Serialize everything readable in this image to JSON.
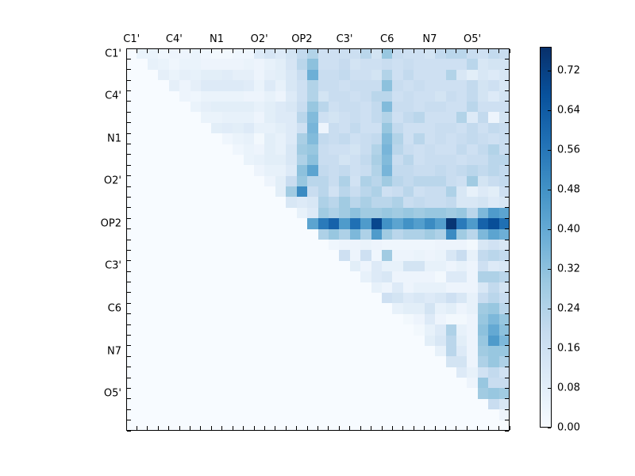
{
  "figure": {
    "background": "#ffffff",
    "frame_color": "#000000",
    "tick_color": "#000000",
    "label_color": "#000000"
  },
  "chart_data": {
    "type": "heatmap",
    "title": "",
    "xlabel": "",
    "ylabel": "",
    "n": 36,
    "x_tick_labels": [
      "C1'",
      "C4'",
      "N1",
      "O2'",
      "OP2",
      "C3'",
      "C6",
      "N7",
      "O5'"
    ],
    "y_tick_labels": [
      "C1'",
      "C4'",
      "N1",
      "O2'",
      "OP2",
      "C3'",
      "C6",
      "N7",
      "O5'"
    ],
    "tick_label_cell_positions": [
      0,
      4,
      8,
      12,
      16,
      20,
      24,
      28,
      32
    ],
    "grid": false,
    "vmin": 0.0,
    "vmax": 0.768,
    "colormap": {
      "name": "Blues",
      "stops": [
        {
          "t": 0.0,
          "color": "#f7fbff"
        },
        {
          "t": 0.125,
          "color": "#deebf7"
        },
        {
          "t": 0.25,
          "color": "#c6dbef"
        },
        {
          "t": 0.375,
          "color": "#9ecae1"
        },
        {
          "t": 0.5,
          "color": "#6baed6"
        },
        {
          "t": 0.625,
          "color": "#4292c6"
        },
        {
          "t": 0.75,
          "color": "#2171b5"
        },
        {
          "t": 0.875,
          "color": "#08519c"
        },
        {
          "t": 1.0,
          "color": "#08306b"
        }
      ]
    },
    "colorbar": {
      "tick_labels": [
        "0.00",
        "0.08",
        "0.16",
        "0.24",
        "0.32",
        "0.40",
        "0.48",
        "0.56",
        "0.64",
        "0.72"
      ],
      "tick_values": [
        0.0,
        0.08,
        0.16,
        0.24,
        0.32,
        0.4,
        0.48,
        0.56,
        0.64,
        0.72
      ],
      "position": "right"
    },
    "matrix": [
      [
        0,
        0.05,
        0.05,
        0.03,
        0.04,
        0.04,
        0.05,
        0.03,
        0.02,
        0.02,
        0.03,
        0.03,
        0.1,
        0.13,
        0.1,
        0.14,
        0.2,
        0.24,
        0.16,
        0.16,
        0.17,
        0.17,
        0.22,
        0.14,
        0.3,
        0.18,
        0.16,
        0.16,
        0.14,
        0.2,
        0.22,
        0.22,
        0.18,
        0.16,
        0.2,
        0.18
      ],
      [
        0,
        0,
        0.06,
        0.05,
        0.03,
        0.05,
        0.05,
        0.04,
        0.04,
        0.04,
        0.04,
        0.05,
        0.04,
        0.06,
        0.08,
        0.13,
        0.22,
        0.32,
        0.16,
        0.16,
        0.19,
        0.14,
        0.16,
        0.16,
        0.18,
        0.16,
        0.18,
        0.16,
        0.16,
        0.16,
        0.16,
        0.16,
        0.22,
        0.12,
        0.14,
        0.14
      ],
      [
        0,
        0,
        0,
        0.07,
        0.05,
        0.07,
        0.06,
        0.08,
        0.08,
        0.09,
        0.07,
        0.07,
        0.04,
        0.07,
        0.08,
        0.12,
        0.18,
        0.38,
        0.18,
        0.18,
        0.2,
        0.16,
        0.16,
        0.14,
        0.24,
        0.16,
        0.2,
        0.16,
        0.16,
        0.16,
        0.24,
        0.12,
        0.08,
        0.12,
        0.1,
        0.12
      ],
      [
        0,
        0,
        0,
        0,
        0.07,
        0.04,
        0.07,
        0.1,
        0.1,
        0.1,
        0.1,
        0.09,
        0.05,
        0.1,
        0.06,
        0.12,
        0.16,
        0.24,
        0.18,
        0.18,
        0.16,
        0.18,
        0.18,
        0.18,
        0.32,
        0.18,
        0.16,
        0.18,
        0.16,
        0.16,
        0.16,
        0.16,
        0.2,
        0.14,
        0.16,
        0.12
      ],
      [
        0,
        0,
        0,
        0,
        0,
        0.04,
        0.03,
        0.05,
        0.05,
        0.05,
        0.05,
        0.04,
        0.04,
        0.06,
        0.04,
        0.1,
        0.16,
        0.24,
        0.14,
        0.18,
        0.18,
        0.16,
        0.18,
        0.22,
        0.22,
        0.16,
        0.18,
        0.16,
        0.16,
        0.14,
        0.18,
        0.16,
        0.2,
        0.14,
        0.1,
        0.14
      ],
      [
        0,
        0,
        0,
        0,
        0,
        0,
        0.05,
        0.07,
        0.08,
        0.08,
        0.08,
        0.08,
        0.06,
        0.08,
        0.1,
        0.12,
        0.18,
        0.3,
        0.22,
        0.16,
        0.18,
        0.18,
        0.16,
        0.2,
        0.34,
        0.18,
        0.18,
        0.16,
        0.18,
        0.18,
        0.16,
        0.16,
        0.22,
        0.16,
        0.16,
        0.16
      ],
      [
        0,
        0,
        0,
        0,
        0,
        0,
        0,
        0.05,
        0.05,
        0.06,
        0.06,
        0.06,
        0.04,
        0.08,
        0.1,
        0.1,
        0.22,
        0.34,
        0.16,
        0.14,
        0.16,
        0.18,
        0.16,
        0.2,
        0.24,
        0.16,
        0.2,
        0.22,
        0.16,
        0.16,
        0.16,
        0.24,
        0.1,
        0.2,
        0.04,
        0.14
      ],
      [
        0,
        0,
        0,
        0,
        0,
        0,
        0,
        0,
        0.08,
        0.09,
        0.08,
        0.1,
        0.06,
        0.06,
        0.08,
        0.1,
        0.16,
        0.36,
        0.04,
        0.18,
        0.16,
        0.2,
        0.16,
        0.16,
        0.3,
        0.2,
        0.16,
        0.16,
        0.16,
        0.18,
        0.18,
        0.16,
        0.2,
        0.16,
        0.2,
        0.18
      ],
      [
        0,
        0,
        0,
        0,
        0,
        0,
        0,
        0,
        0,
        0.03,
        0.05,
        0.06,
        0.02,
        0.08,
        0.06,
        0.1,
        0.26,
        0.34,
        0.2,
        0.18,
        0.2,
        0.16,
        0.18,
        0.2,
        0.34,
        0.24,
        0.16,
        0.22,
        0.16,
        0.18,
        0.16,
        0.18,
        0.2,
        0.18,
        0.16,
        0.18
      ],
      [
        0,
        0,
        0,
        0,
        0,
        0,
        0,
        0,
        0,
        0,
        0.03,
        0.05,
        0.04,
        0.08,
        0.06,
        0.12,
        0.28,
        0.3,
        0.18,
        0.16,
        0.16,
        0.14,
        0.18,
        0.24,
        0.36,
        0.22,
        0.18,
        0.16,
        0.18,
        0.16,
        0.16,
        0.2,
        0.16,
        0.2,
        0.24,
        0.18
      ],
      [
        0,
        0,
        0,
        0,
        0,
        0,
        0,
        0,
        0,
        0,
        0,
        0.05,
        0.06,
        0.08,
        0.08,
        0.12,
        0.25,
        0.32,
        0.18,
        0.18,
        0.14,
        0.16,
        0.2,
        0.26,
        0.34,
        0.18,
        0.22,
        0.16,
        0.18,
        0.18,
        0.18,
        0.16,
        0.18,
        0.18,
        0.22,
        0.22
      ],
      [
        0,
        0,
        0,
        0,
        0,
        0,
        0,
        0,
        0,
        0,
        0,
        0,
        0.04,
        0.06,
        0.06,
        0.1,
        0.32,
        0.42,
        0.2,
        0.18,
        0.2,
        0.16,
        0.18,
        0.24,
        0.36,
        0.2,
        0.2,
        0.18,
        0.18,
        0.2,
        0.18,
        0.2,
        0.22,
        0.2,
        0.22,
        0.2
      ],
      [
        0,
        0,
        0,
        0,
        0,
        0,
        0,
        0,
        0,
        0,
        0,
        0,
        0,
        0.04,
        0.08,
        0.18,
        0.3,
        0.22,
        0.22,
        0.18,
        0.25,
        0.15,
        0.25,
        0.22,
        0.28,
        0.22,
        0.2,
        0.22,
        0.22,
        0.22,
        0.18,
        0.16,
        0.28,
        0.14,
        0.18,
        0.2
      ],
      [
        0,
        0,
        0,
        0,
        0,
        0,
        0,
        0,
        0,
        0,
        0,
        0,
        0,
        0,
        0.08,
        0.28,
        0.5,
        0.18,
        0.22,
        0.15,
        0.22,
        0.18,
        0.22,
        0.25,
        0.16,
        0.18,
        0.22,
        0.16,
        0.18,
        0.18,
        0.25,
        0.12,
        0.06,
        0.1,
        0.08,
        0.16
      ],
      [
        0,
        0,
        0,
        0,
        0,
        0,
        0,
        0,
        0,
        0,
        0,
        0,
        0,
        0,
        0,
        0.12,
        0.1,
        0.12,
        0.25,
        0.22,
        0.28,
        0.22,
        0.26,
        0.22,
        0.22,
        0.25,
        0.18,
        0.2,
        0.18,
        0.18,
        0.2,
        0.12,
        0.12,
        0.14,
        0.1,
        0.12
      ],
      [
        0,
        0,
        0,
        0,
        0,
        0,
        0,
        0,
        0,
        0,
        0,
        0,
        0,
        0,
        0,
        0,
        0.06,
        0.1,
        0.28,
        0.25,
        0.28,
        0.32,
        0.28,
        0.28,
        0.3,
        0.28,
        0.3,
        0.28,
        0.3,
        0.3,
        0.28,
        0.3,
        0.22,
        0.35,
        0.45,
        0.42
      ],
      [
        0,
        0,
        0,
        0,
        0,
        0,
        0,
        0,
        0,
        0,
        0,
        0,
        0,
        0,
        0,
        0,
        0,
        0.42,
        0.55,
        0.62,
        0.45,
        0.58,
        0.45,
        0.7,
        0.48,
        0.42,
        0.48,
        0.44,
        0.5,
        0.44,
        0.75,
        0.55,
        0.45,
        0.62,
        0.68,
        0.58
      ],
      [
        0,
        0,
        0,
        0,
        0,
        0,
        0,
        0,
        0,
        0,
        0,
        0,
        0,
        0,
        0,
        0,
        0,
        0,
        0.25,
        0.3,
        0.25,
        0.35,
        0.25,
        0.45,
        0.28,
        0.22,
        0.25,
        0.25,
        0.28,
        0.25,
        0.5,
        0.28,
        0.22,
        0.35,
        0.42,
        0.38
      ],
      [
        0,
        0,
        0,
        0,
        0,
        0,
        0,
        0,
        0,
        0,
        0,
        0,
        0,
        0,
        0,
        0,
        0,
        0,
        0,
        0.03,
        0.04,
        0.04,
        0.05,
        0.04,
        0.03,
        0.03,
        0.03,
        0.03,
        0.03,
        0.04,
        0.04,
        0.04,
        0.02,
        0.12,
        0.15,
        0.12
      ],
      [
        0,
        0,
        0,
        0,
        0,
        0,
        0,
        0,
        0,
        0,
        0,
        0,
        0,
        0,
        0,
        0,
        0,
        0,
        0,
        0,
        0.16,
        0.04,
        0.16,
        0.03,
        0.28,
        0.04,
        0.04,
        0.05,
        0.04,
        0.05,
        0.12,
        0.18,
        0.06,
        0.2,
        0.22,
        0.2
      ],
      [
        0,
        0,
        0,
        0,
        0,
        0,
        0,
        0,
        0,
        0,
        0,
        0,
        0,
        0,
        0,
        0,
        0,
        0,
        0,
        0,
        0,
        0.08,
        0.04,
        0.1,
        0.06,
        0.06,
        0.14,
        0.14,
        0.06,
        0.06,
        0.04,
        0.06,
        0.04,
        0.16,
        0.1,
        0.12
      ],
      [
        0,
        0,
        0,
        0,
        0,
        0,
        0,
        0,
        0,
        0,
        0,
        0,
        0,
        0,
        0,
        0,
        0,
        0,
        0,
        0,
        0,
        0,
        0.06,
        0.1,
        0.12,
        0.04,
        0.04,
        0.04,
        0.04,
        0.02,
        0.1,
        0.1,
        0.04,
        0.25,
        0.25,
        0.22
      ],
      [
        0,
        0,
        0,
        0,
        0,
        0,
        0,
        0,
        0,
        0,
        0,
        0,
        0,
        0,
        0,
        0,
        0,
        0,
        0,
        0,
        0,
        0,
        0,
        0.06,
        0.04,
        0.1,
        0.04,
        0.06,
        0.06,
        0.06,
        0.04,
        0.04,
        0.04,
        0.12,
        0.2,
        0.14
      ],
      [
        0,
        0,
        0,
        0,
        0,
        0,
        0,
        0,
        0,
        0,
        0,
        0,
        0,
        0,
        0,
        0,
        0,
        0,
        0,
        0,
        0,
        0,
        0,
        0,
        0.16,
        0.14,
        0.1,
        0.12,
        0.1,
        0.12,
        0.16,
        0.12,
        0.06,
        0.18,
        0.22,
        0.18
      ],
      [
        0,
        0,
        0,
        0,
        0,
        0,
        0,
        0,
        0,
        0,
        0,
        0,
        0,
        0,
        0,
        0,
        0,
        0,
        0,
        0,
        0,
        0,
        0,
        0,
        0,
        0.06,
        0.08,
        0.08,
        0.14,
        0.06,
        0.08,
        0.04,
        0.06,
        0.28,
        0.3,
        0.22
      ],
      [
        0,
        0,
        0,
        0,
        0,
        0,
        0,
        0,
        0,
        0,
        0,
        0,
        0,
        0,
        0,
        0,
        0,
        0,
        0,
        0,
        0,
        0,
        0,
        0,
        0,
        0,
        0.02,
        0.04,
        0.1,
        0.04,
        0.02,
        0.02,
        0.04,
        0.3,
        0.35,
        0.3
      ],
      [
        0,
        0,
        0,
        0,
        0,
        0,
        0,
        0,
        0,
        0,
        0,
        0,
        0,
        0,
        0,
        0,
        0,
        0,
        0,
        0,
        0,
        0,
        0,
        0,
        0,
        0,
        0,
        0.02,
        0.06,
        0.1,
        0.25,
        0.06,
        0.04,
        0.32,
        0.4,
        0.32
      ],
      [
        0,
        0,
        0,
        0,
        0,
        0,
        0,
        0,
        0,
        0,
        0,
        0,
        0,
        0,
        0,
        0,
        0,
        0,
        0,
        0,
        0,
        0,
        0,
        0,
        0,
        0,
        0,
        0,
        0.08,
        0.12,
        0.22,
        0.08,
        0.04,
        0.3,
        0.45,
        0.35
      ],
      [
        0,
        0,
        0,
        0,
        0,
        0,
        0,
        0,
        0,
        0,
        0,
        0,
        0,
        0,
        0,
        0,
        0,
        0,
        0,
        0,
        0,
        0,
        0,
        0,
        0,
        0,
        0,
        0,
        0,
        0.06,
        0.22,
        0.1,
        0.04,
        0.28,
        0.3,
        0.3
      ],
      [
        0,
        0,
        0,
        0,
        0,
        0,
        0,
        0,
        0,
        0,
        0,
        0,
        0,
        0,
        0,
        0,
        0,
        0,
        0,
        0,
        0,
        0,
        0,
        0,
        0,
        0,
        0,
        0,
        0,
        0,
        0.14,
        0.14,
        0.04,
        0.25,
        0.3,
        0.25
      ],
      [
        0,
        0,
        0,
        0,
        0,
        0,
        0,
        0,
        0,
        0,
        0,
        0,
        0,
        0,
        0,
        0,
        0,
        0,
        0,
        0,
        0,
        0,
        0,
        0,
        0,
        0,
        0,
        0,
        0,
        0,
        0,
        0.1,
        0.06,
        0.15,
        0.2,
        0.15
      ],
      [
        0,
        0,
        0,
        0,
        0,
        0,
        0,
        0,
        0,
        0,
        0,
        0,
        0,
        0,
        0,
        0,
        0,
        0,
        0,
        0,
        0,
        0,
        0,
        0,
        0,
        0,
        0,
        0,
        0,
        0,
        0,
        0,
        0.04,
        0.3,
        0.18,
        0.18
      ],
      [
        0,
        0,
        0,
        0,
        0,
        0,
        0,
        0,
        0,
        0,
        0,
        0,
        0,
        0,
        0,
        0,
        0,
        0,
        0,
        0,
        0,
        0,
        0,
        0,
        0,
        0,
        0,
        0,
        0,
        0,
        0,
        0,
        0,
        0.28,
        0.3,
        0.28
      ],
      [
        0,
        0,
        0,
        0,
        0,
        0,
        0,
        0,
        0,
        0,
        0,
        0,
        0,
        0,
        0,
        0,
        0,
        0,
        0,
        0,
        0,
        0,
        0,
        0,
        0,
        0,
        0,
        0,
        0,
        0,
        0,
        0,
        0,
        0,
        0.18,
        0.12
      ],
      [
        0,
        0,
        0,
        0,
        0,
        0,
        0,
        0,
        0,
        0,
        0,
        0,
        0,
        0,
        0,
        0,
        0,
        0,
        0,
        0,
        0,
        0,
        0,
        0,
        0,
        0,
        0,
        0,
        0,
        0,
        0,
        0,
        0,
        0,
        0,
        0.04
      ],
      [
        0,
        0,
        0,
        0,
        0,
        0,
        0,
        0,
        0,
        0,
        0,
        0,
        0,
        0,
        0,
        0,
        0,
        0,
        0,
        0,
        0,
        0,
        0,
        0,
        0,
        0,
        0,
        0,
        0,
        0,
        0,
        0,
        0,
        0,
        0,
        0
      ]
    ]
  }
}
